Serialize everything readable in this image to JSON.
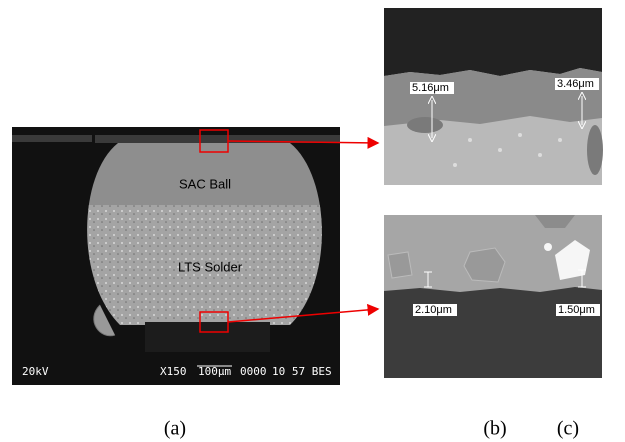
{
  "panel_a": {
    "labels": [
      "SAC Ball",
      "LTS Solder"
    ],
    "info_bar": [
      "20kV",
      "X150",
      "100μm",
      "0000",
      "10 57 BES"
    ]
  },
  "panel_b": {
    "measurements": [
      "5.16μm",
      "3.46μm"
    ]
  },
  "panel_c": {
    "measurements": [
      "2.10μm",
      "1.50μm"
    ]
  },
  "captions": [
    "(a)",
    "(b)",
    "(c)"
  ]
}
